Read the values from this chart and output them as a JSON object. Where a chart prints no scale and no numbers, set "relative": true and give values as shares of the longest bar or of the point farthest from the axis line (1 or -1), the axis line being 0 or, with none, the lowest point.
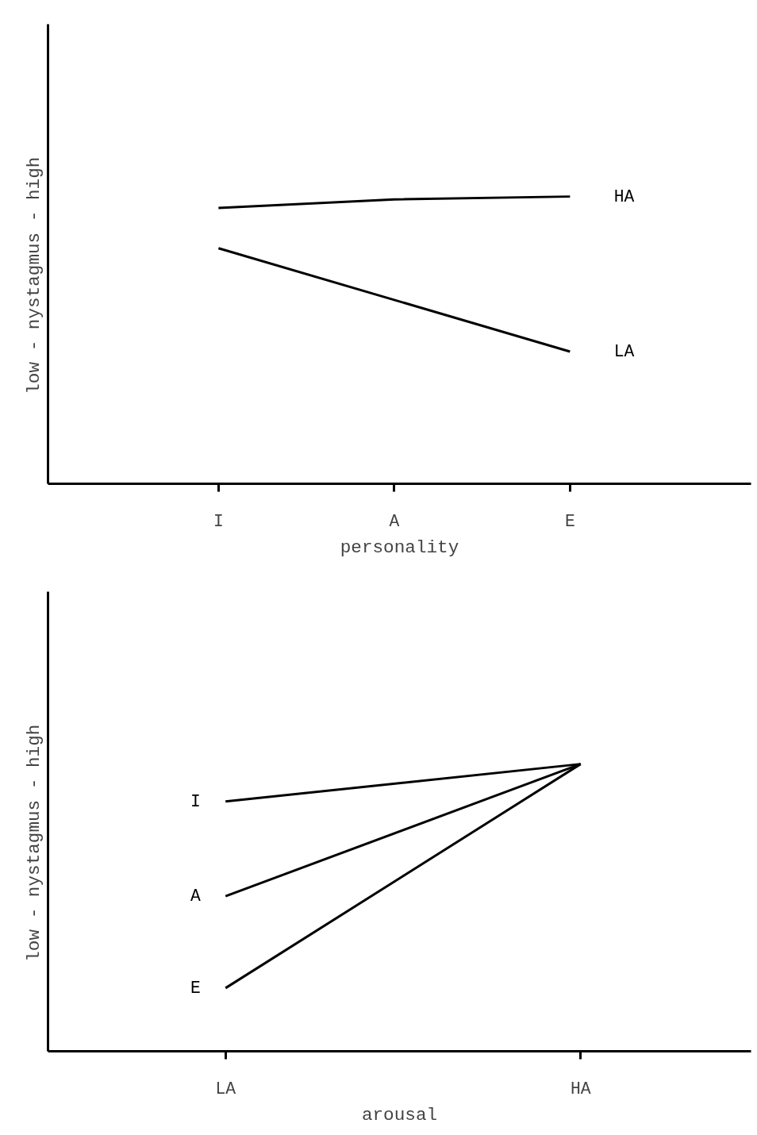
{
  "chart_data": [
    {
      "type": "line",
      "relative": true,
      "categories": [
        "I",
        "A",
        "E"
      ],
      "xlabel": "personality",
      "ylabel": "low  -  nystagmus  -  high",
      "tick_labels": "x",
      "grid": false,
      "marker": "none",
      "line_style": "solid",
      "series": [
        {
          "name": "HA",
          "color": "#000000",
          "values": [
            0.96,
            0.99,
            1.0
          ]
        },
        {
          "name": "LA",
          "color": "#000000",
          "values": [
            0.82,
            0.64,
            0.46
          ]
        }
      ]
    },
    {
      "type": "line",
      "relative": true,
      "categories": [
        "LA",
        "HA"
      ],
      "xlabel": "arousal",
      "ylabel": "low  -  nystagmus  -  high",
      "tick_labels": "x",
      "grid": false,
      "marker": "none",
      "line_style": "solid",
      "series": [
        {
          "name": "I",
          "color": "#000000",
          "values": [
            0.87,
            1.0
          ]
        },
        {
          "name": "A",
          "color": "#000000",
          "values": [
            0.54,
            1.0
          ]
        },
        {
          "name": "E",
          "color": "#000000",
          "values": [
            0.22,
            1.0
          ]
        }
      ]
    }
  ]
}
